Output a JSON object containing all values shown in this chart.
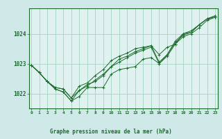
{
  "background_color": "#cfe9e9",
  "plot_bg_color": "#dff2f0",
  "grid_color": "#99ccbb",
  "line_color": "#1a6b2a",
  "title": "Graphe pression niveau de la mer (hPa)",
  "xlabel_hours": [
    0,
    1,
    2,
    3,
    4,
    5,
    6,
    7,
    8,
    9,
    10,
    11,
    12,
    13,
    14,
    15,
    16,
    17,
    18,
    19,
    20,
    21,
    22,
    23
  ],
  "yticks": [
    1022,
    1023,
    1024
  ],
  "ylim": [
    1021.5,
    1024.85
  ],
  "xlim": [
    -0.3,
    23.3
  ],
  "series": [
    [
      1022.95,
      1022.7,
      1022.4,
      1022.15,
      1022.05,
      1021.75,
      1021.9,
      1022.2,
      1022.2,
      1022.2,
      1022.65,
      1022.8,
      1022.85,
      1022.9,
      1023.15,
      1023.2,
      1023.0,
      1023.25,
      1023.65,
      1023.9,
      1024.0,
      1024.2,
      1024.45,
      1024.55
    ],
    [
      1022.95,
      1022.7,
      1022.4,
      1022.2,
      1022.15,
      1021.85,
      1022.1,
      1022.25,
      1022.45,
      1022.65,
      1022.9,
      1023.15,
      1023.25,
      1023.4,
      1023.5,
      1023.6,
      1023.3,
      1023.55,
      1023.65,
      1024.0,
      1024.1,
      1024.3,
      1024.5,
      1024.6
    ],
    [
      1022.95,
      1022.7,
      1022.4,
      1022.2,
      1022.15,
      1021.85,
      1022.25,
      1022.35,
      1022.6,
      1022.8,
      1023.1,
      1023.25,
      1023.35,
      1023.5,
      1023.55,
      1023.6,
      1023.05,
      1023.3,
      1023.75,
      1024.0,
      1024.05,
      1024.3,
      1024.5,
      1024.6
    ],
    [
      1022.95,
      1022.7,
      1022.4,
      1022.15,
      1022.05,
      1021.75,
      1022.1,
      1022.3,
      1022.4,
      1022.6,
      1022.9,
      1023.05,
      1023.2,
      1023.35,
      1023.45,
      1023.55,
      1023.0,
      1023.3,
      1023.7,
      1023.95,
      1024.05,
      1024.3,
      1024.5,
      1024.55
    ]
  ]
}
